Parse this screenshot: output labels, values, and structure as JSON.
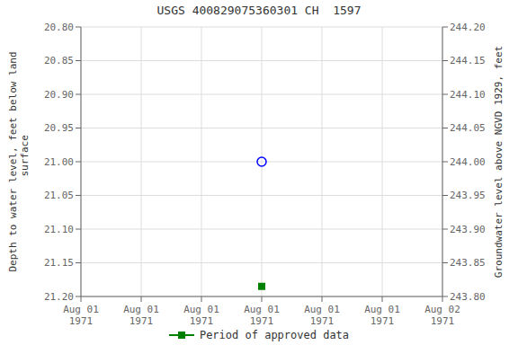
{
  "chart_data": {
    "type": "scatter",
    "title": "USGS 400829075360301 CH  1597",
    "categories": [
      "Aug 01\n1971",
      "Aug 01\n1971",
      "Aug 01\n1971",
      "Aug 01\n1971",
      "Aug 01\n1971",
      "Aug 01\n1971",
      "Aug 02\n1971"
    ],
    "ylabel": "Depth to water level, feet below land\n  surface",
    "y2label": "Groundwater level above NGVD 1929, feet",
    "series": [
      {
        "color": "#0000ff",
        "marker": "open_circle",
        "values": [
          null,
          null,
          null,
          21.0,
          null,
          null,
          null
        ]
      },
      {
        "name": "Period of approved data",
        "color": "#008000",
        "marker": "square",
        "values": [
          null,
          null,
          null,
          21.185,
          null,
          null,
          null
        ]
      }
    ],
    "ylim": [
      21.2,
      20.8
    ],
    "yticks": [
      {
        "value": 20.8,
        "label": "20.80"
      },
      20.85,
      {
        "value": 20.9,
        "label": "20.90"
      },
      20.95,
      {
        "value": 21,
        "label": "21.00"
      },
      21.05,
      {
        "value": 21.1,
        "label": "21.10"
      },
      21.15,
      {
        "value": 21.2,
        "label": "21.20"
      }
    ],
    "y2lim": [
      243.8,
      244.2
    ],
    "y2ticks": [
      {
        "value": 244.2,
        "label": "244.20"
      },
      244.15,
      {
        "value": 244.1,
        "label": "244.10"
      },
      244.05,
      {
        "value": 244,
        "label": "244.00"
      },
      243.95,
      {
        "value": 243.9,
        "label": "243.90"
      },
      243.85,
      {
        "value": 243.8,
        "label": "243.80"
      }
    ],
    "grid": true,
    "legend": "bottom"
  }
}
